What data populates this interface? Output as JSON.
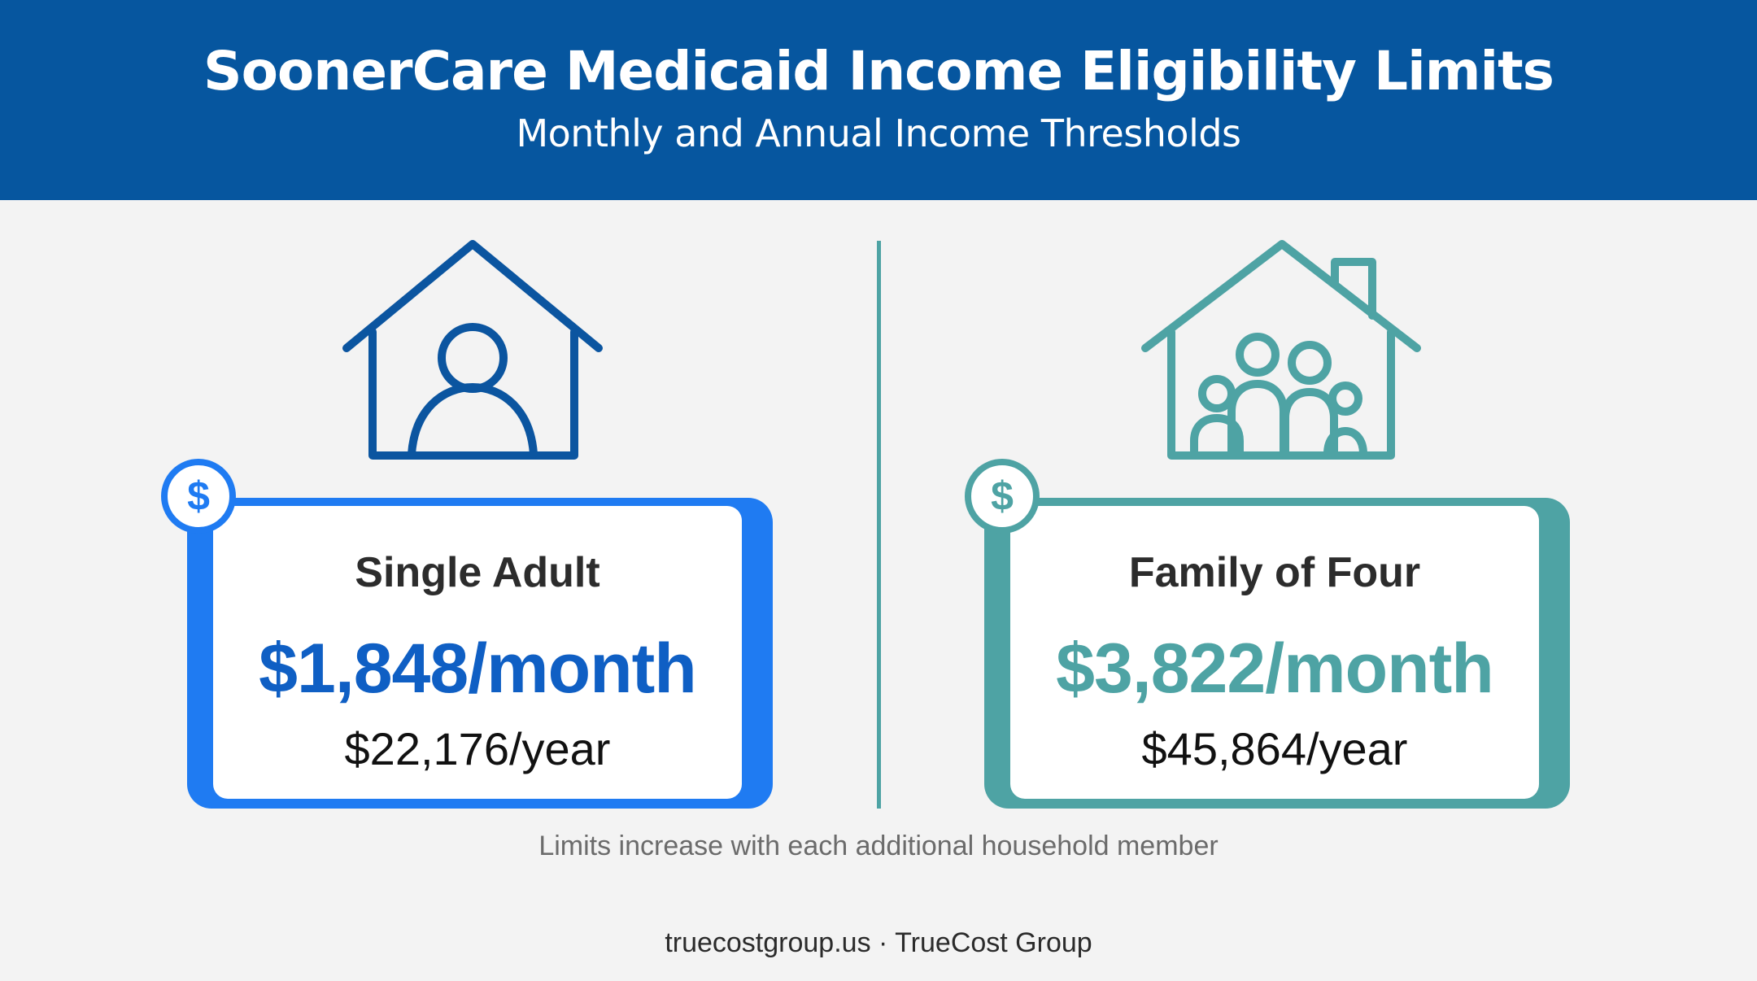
{
  "header": {
    "title": "SoonerCare Medicaid Income Eligibility Limits",
    "subtitle": "Monthly and Annual Income Thresholds"
  },
  "cards": [
    {
      "label": "Single Adult",
      "monthly": "$1,848/month",
      "annual": "$22,176/year",
      "icon": "house-single-person-icon",
      "accent_color": "#1f7bf2",
      "value_color": "#0f5fc4",
      "icon_color": "#0b55a0"
    },
    {
      "label": "Family of Four",
      "monthly": "$3,822/month",
      "annual": "$45,864/year",
      "icon": "house-family-icon",
      "accent_color": "#4ea3a4",
      "value_color": "#4ea3a4",
      "icon_color": "#4ea3a4"
    }
  ],
  "badge_symbol": "$",
  "note": "Limits increase with each additional household member",
  "footer": "truecostgroup.us · TrueCost Group",
  "colors": {
    "header_bg": "#06569f",
    "page_bg": "#f3f3f3",
    "divider": "#4ea3a4"
  }
}
